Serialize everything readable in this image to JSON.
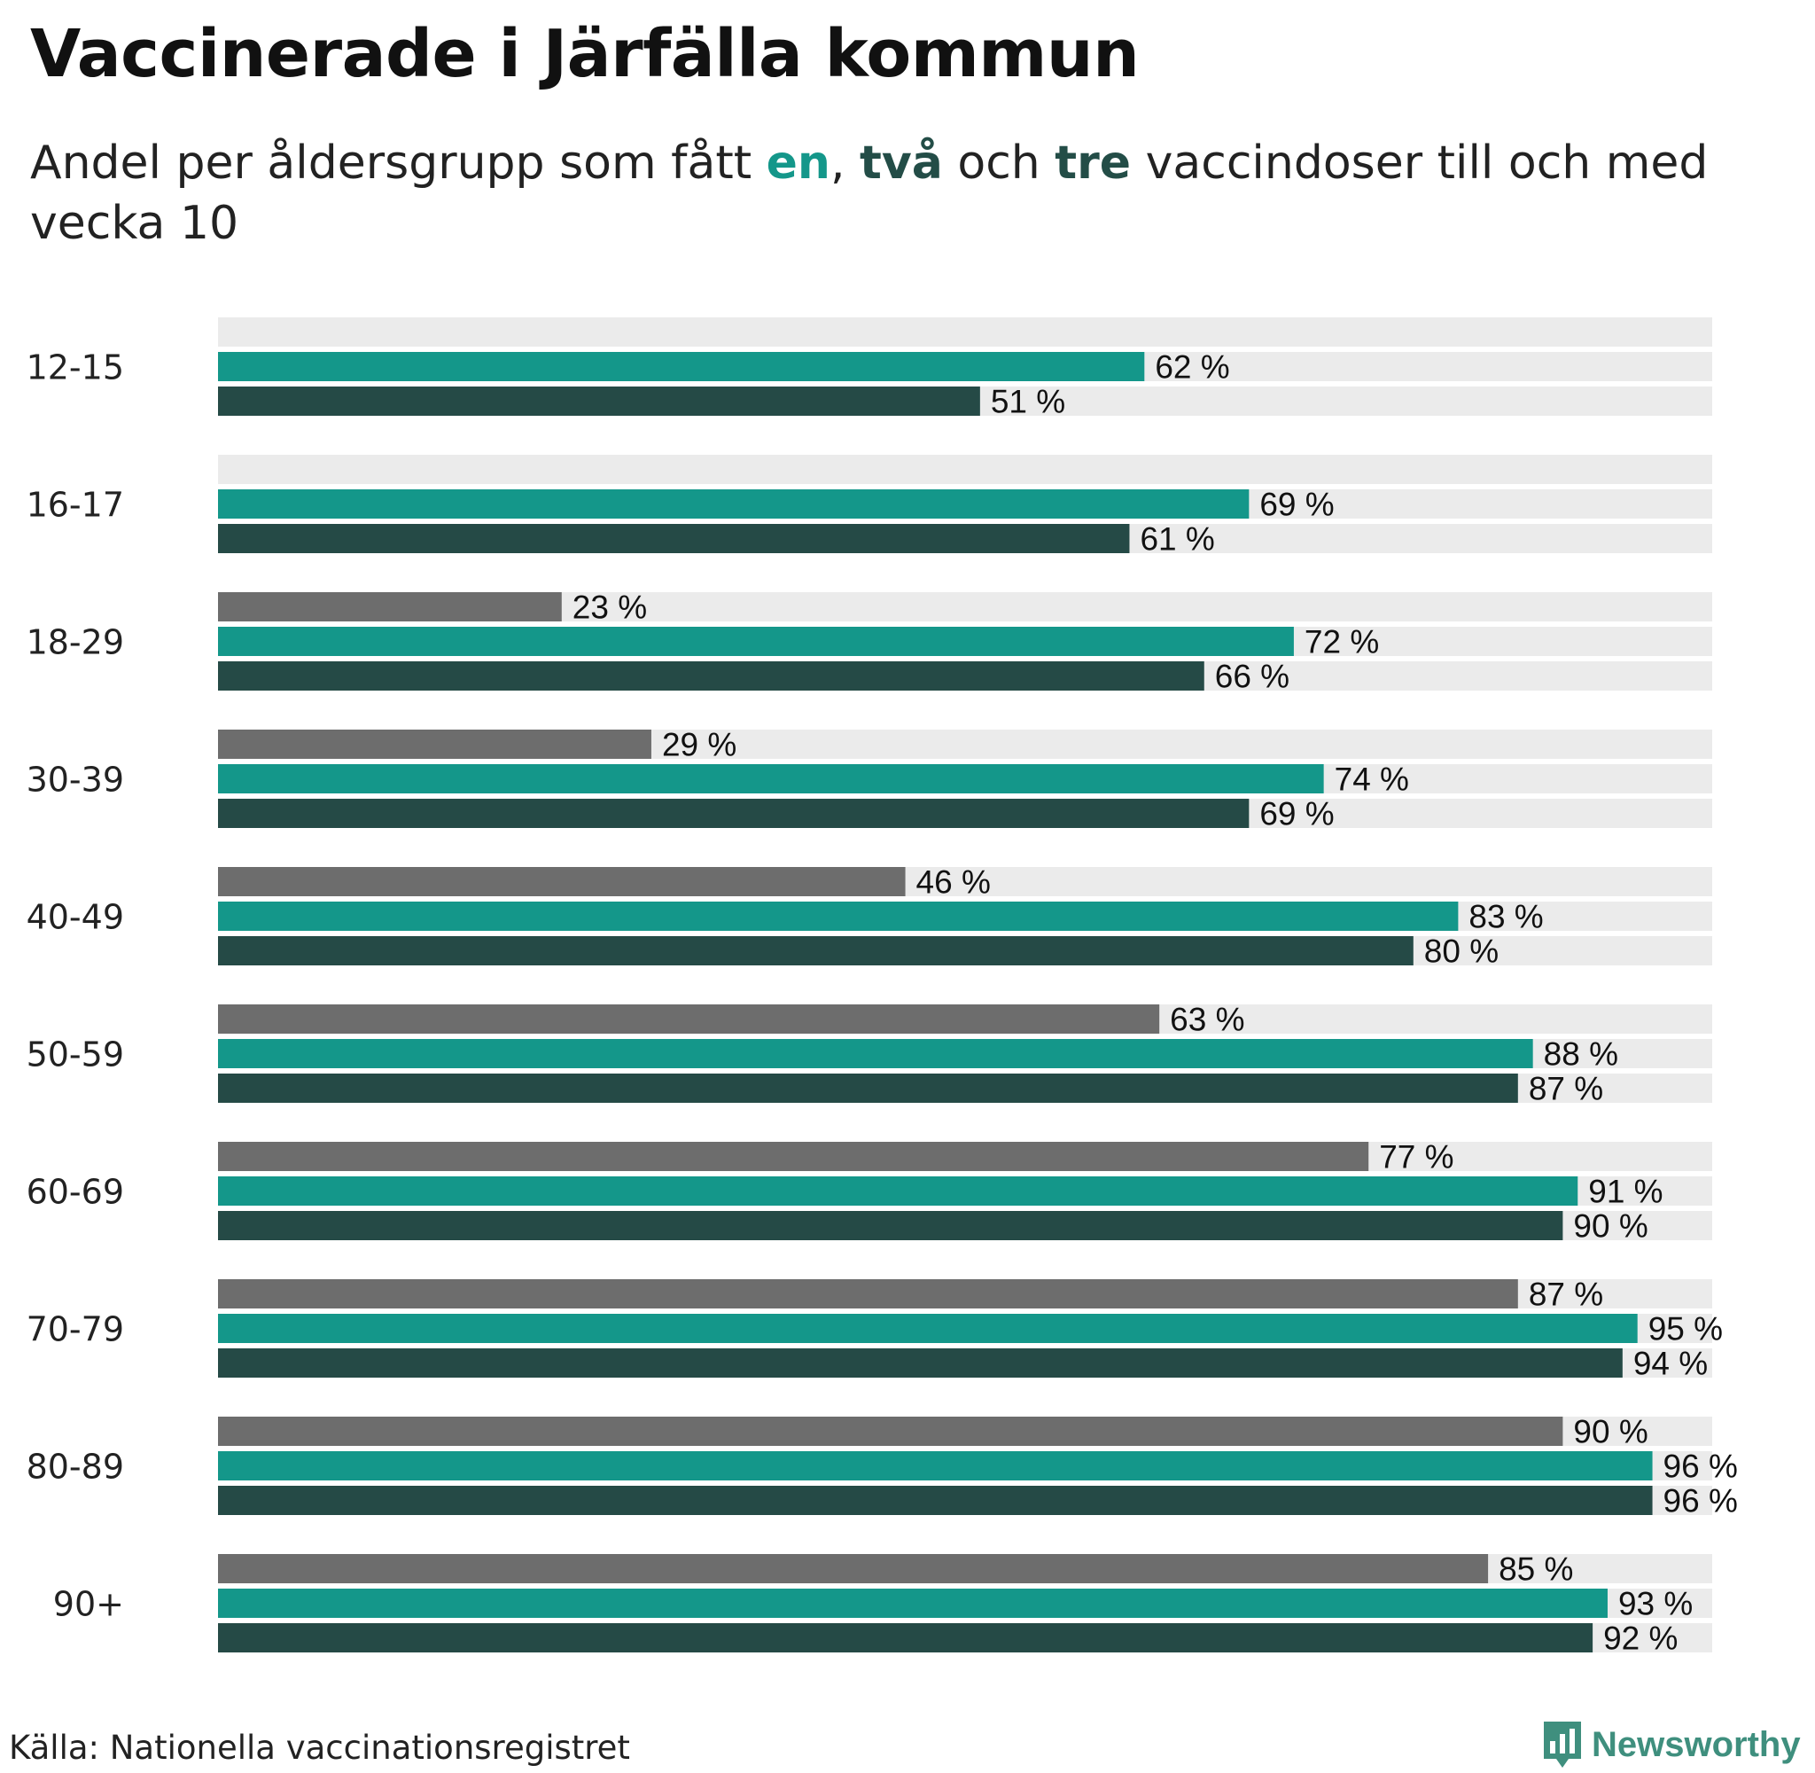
{
  "title": "Vaccinerade i Järfälla kommun",
  "subtitle": {
    "prefix": "Andel per åldersgrupp som fått ",
    "dose1": "en",
    "sep": ", ",
    "dose2": "två",
    "mid": " och ",
    "dose3": "tre",
    "suffix": " vaccindoser till och med vecka 10"
  },
  "source": "Källa: Nationella vaccinationsregistret",
  "brand": "Newsworthy",
  "colors": {
    "background_track": "#ebebeb",
    "dose3": "#6d6d6d",
    "dose1": "#14978a",
    "dose2": "#254a46",
    "label": "#111111"
  },
  "chart_data": {
    "type": "bar",
    "orientation": "horizontal",
    "xlim": [
      0,
      100
    ],
    "unit": "%",
    "value_suffix": " %",
    "categories": [
      "12-15",
      "16-17",
      "18-29",
      "30-39",
      "40-49",
      "50-59",
      "60-69",
      "70-79",
      "80-89",
      "90+"
    ],
    "series": [
      {
        "name": "tre",
        "color": "#6d6d6d",
        "values": [
          null,
          null,
          23,
          29,
          46,
          63,
          77,
          87,
          90,
          85
        ]
      },
      {
        "name": "en",
        "color": "#14978a",
        "values": [
          62,
          69,
          72,
          74,
          83,
          88,
          91,
          95,
          96,
          93
        ]
      },
      {
        "name": "två",
        "color": "#254a46",
        "values": [
          51,
          61,
          66,
          69,
          80,
          87,
          90,
          94,
          96,
          92
        ]
      }
    ]
  }
}
